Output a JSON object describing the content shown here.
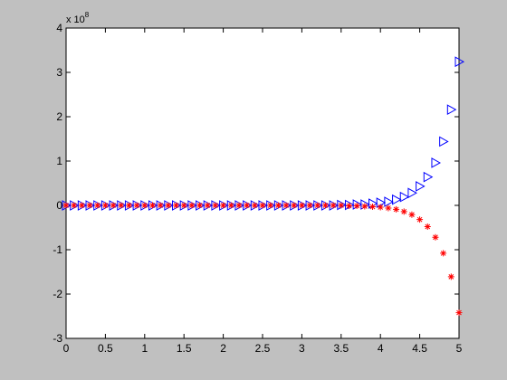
{
  "chart_data": {
    "type": "scatter",
    "y_multiplier": {
      "base": "x 10",
      "exponent": "8"
    },
    "x": [
      0,
      0.1,
      0.2,
      0.3,
      0.4,
      0.5,
      0.6,
      0.7,
      0.8,
      0.9,
      1,
      1.1,
      1.2,
      1.3,
      1.4,
      1.5,
      1.6,
      1.7,
      1.8,
      1.9,
      2,
      2.1,
      2.2,
      2.3,
      2.4,
      2.5,
      2.6,
      2.7,
      2.8,
      2.9,
      3,
      3.1,
      3.2,
      3.3,
      3.4,
      3.5,
      3.6,
      3.7,
      3.8,
      3.9,
      4,
      4.1,
      4.2,
      4.3,
      4.4,
      4.5,
      4.6,
      4.7,
      4.8,
      4.9,
      5
    ],
    "series": [
      {
        "marker": "triangle-right",
        "color": "#0000ff",
        "values": [
          0,
          0,
          0,
          0,
          0,
          0,
          0,
          0,
          0,
          0,
          0,
          0,
          0,
          0,
          0,
          0,
          0,
          0,
          0,
          0,
          0,
          0,
          0,
          0,
          0,
          0,
          0,
          0,
          0,
          0,
          0,
          0,
          0,
          0,
          0,
          0.01,
          0.01,
          0.02,
          0.02,
          0.04,
          0.06,
          0.08,
          0.13,
          0.19,
          0.28,
          0.43,
          0.64,
          0.96,
          1.44,
          2.16,
          3.24
        ]
      },
      {
        "marker": "asterisk",
        "color": "#ff0000",
        "values": [
          0,
          0,
          0,
          0,
          0,
          0,
          0,
          0,
          0,
          0,
          0,
          0,
          0,
          0,
          0,
          0,
          0,
          0,
          0,
          0,
          0,
          0,
          0,
          0,
          0,
          0,
          0,
          0,
          0,
          0,
          0,
          0,
          0,
          0,
          0,
          0,
          -0.01,
          -0.01,
          -0.02,
          -0.03,
          -0.04,
          -0.06,
          -0.09,
          -0.14,
          -0.21,
          -0.32,
          -0.48,
          -0.72,
          -1.08,
          -1.61,
          -2.42
        ]
      }
    ],
    "xlim": [
      0,
      5
    ],
    "xticks": [
      0,
      0.5,
      1,
      1.5,
      2,
      2.5,
      3,
      3.5,
      4,
      4.5,
      5
    ],
    "ylim": [
      -3,
      4
    ],
    "yticks": [
      -3,
      -2,
      -1,
      0,
      1,
      2,
      3,
      4
    ]
  }
}
